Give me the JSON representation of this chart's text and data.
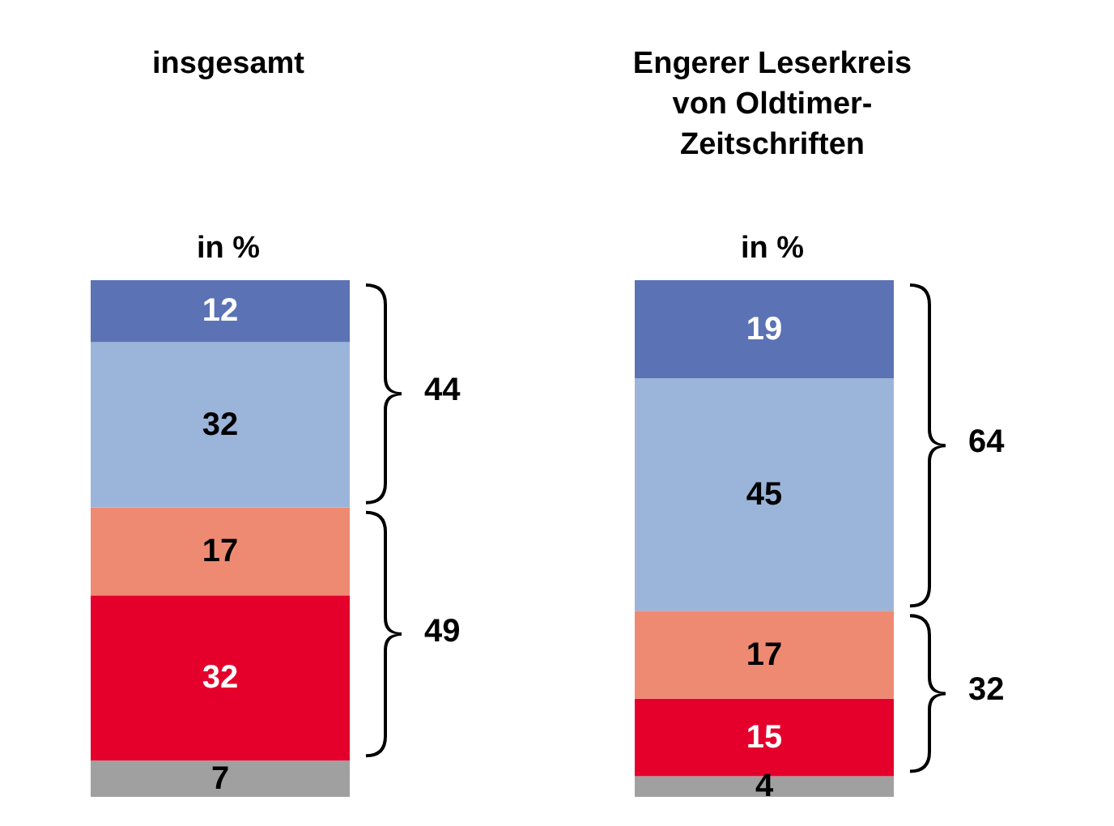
{
  "chart_data": [
    {
      "type": "bar",
      "stacked": true,
      "data_labels": true,
      "grid": false,
      "title": "insgesamt",
      "subtitle": "in %",
      "categories": [
        null
      ],
      "series": [
        {
          "color": "#a0a0a0",
          "values": [
            7
          ]
        },
        {
          "color": "#e4002b",
          "values": [
            32
          ]
        },
        {
          "color": "#ef8a72",
          "values": [
            17
          ]
        },
        {
          "color": "#9bb4da",
          "values": [
            32
          ]
        },
        {
          "color": "#5b72b4",
          "values": [
            12
          ]
        }
      ],
      "annotations": [
        "44",
        "49"
      ]
    },
    {
      "type": "bar",
      "stacked": true,
      "data_labels": true,
      "grid": false,
      "title": "Engerer Leserkreis\nvon Oldtimer-\nZeitschriften",
      "subtitle": "in %",
      "categories": [
        null
      ],
      "series": [
        {
          "color": "#a0a0a0",
          "values": [
            4
          ]
        },
        {
          "color": "#e4002b",
          "values": [
            15
          ]
        },
        {
          "color": "#ef8a72",
          "values": [
            17
          ]
        },
        {
          "color": "#9bb4da",
          "values": [
            45
          ]
        },
        {
          "color": "#5b72b4",
          "values": [
            19
          ]
        }
      ],
      "annotations": [
        "64",
        "32"
      ]
    }
  ]
}
